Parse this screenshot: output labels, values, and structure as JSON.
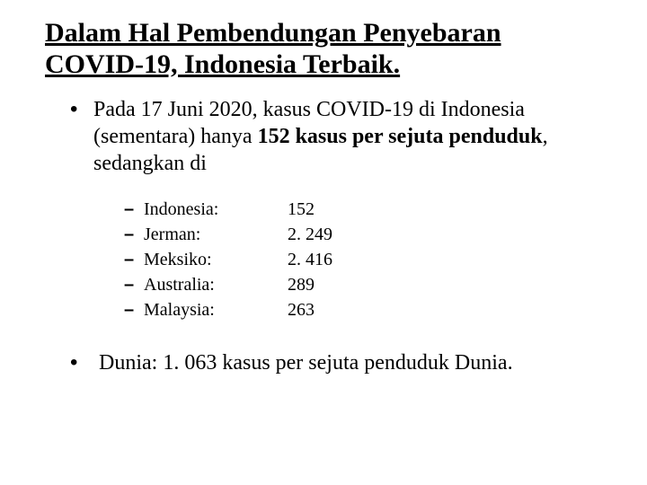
{
  "title_line1": "Dalam Hal Pembendungan Penyebaran",
  "title_line2": "COVID-19, Indonesia Terbaik.",
  "intro_a": "Pada 17 Juni 2020, kasus COVID-19 di Indonesia (sementara) hanya ",
  "intro_b_bold": "152 kasus per sejuta penduduk",
  "intro_c": ", sedangkan di",
  "rows": [
    {
      "country": "Indonesia:",
      "value": "152"
    },
    {
      "country": "Jerman:",
      "value": "2. 249"
    },
    {
      "country": "Meksiko:",
      "value": "2. 416"
    },
    {
      "country": "Australia:",
      "value": "289"
    },
    {
      "country": "Malaysia:",
      "value": "263"
    }
  ],
  "final": "Dunia: 1. 063 kasus per sejuta penduduk Dunia.",
  "bullet_glyph": "•",
  "dash_glyph": "–"
}
